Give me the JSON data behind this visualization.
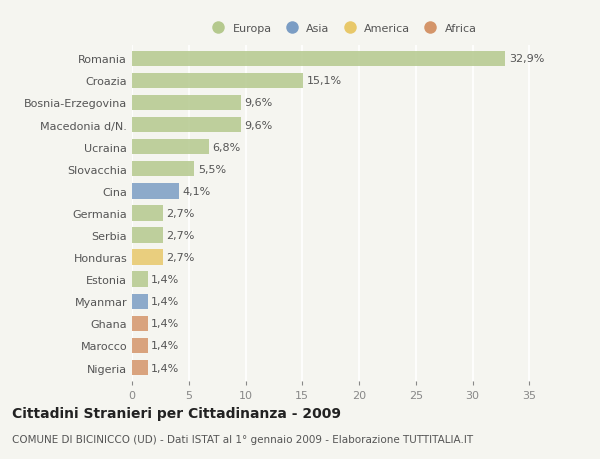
{
  "categories": [
    "Romania",
    "Croazia",
    "Bosnia-Erzegovina",
    "Macedonia d/N.",
    "Ucraina",
    "Slovacchia",
    "Cina",
    "Germania",
    "Serbia",
    "Honduras",
    "Estonia",
    "Myanmar",
    "Ghana",
    "Marocco",
    "Nigeria"
  ],
  "values": [
    32.9,
    15.1,
    9.6,
    9.6,
    6.8,
    5.5,
    4.1,
    2.7,
    2.7,
    2.7,
    1.4,
    1.4,
    1.4,
    1.4,
    1.4
  ],
  "labels": [
    "32,9%",
    "15,1%",
    "9,6%",
    "9,6%",
    "6,8%",
    "5,5%",
    "4,1%",
    "2,7%",
    "2,7%",
    "2,7%",
    "1,4%",
    "1,4%",
    "1,4%",
    "1,4%",
    "1,4%"
  ],
  "colors": [
    "#b5c98e",
    "#b5c98e",
    "#b5c98e",
    "#b5c98e",
    "#b5c98e",
    "#b5c98e",
    "#7b9dc4",
    "#b5c98e",
    "#b5c98e",
    "#e8c86a",
    "#b5c98e",
    "#7b9dc4",
    "#d4956a",
    "#d4956a",
    "#d4956a"
  ],
  "legend_labels": [
    "Europa",
    "Asia",
    "America",
    "Africa"
  ],
  "legend_colors": [
    "#b5c98e",
    "#7b9dc4",
    "#e8c86a",
    "#d4956a"
  ],
  "xlim": [
    0,
    37
  ],
  "xticks": [
    0,
    5,
    10,
    15,
    20,
    25,
    30,
    35
  ],
  "title": "Cittadini Stranieri per Cittadinanza - 2009",
  "subtitle": "COMUNE DI BICINICCO (UD) - Dati ISTAT al 1° gennaio 2009 - Elaborazione TUTTITALIA.IT",
  "bg_color": "#f5f5f0",
  "bar_height": 0.7,
  "label_fontsize": 8,
  "tick_fontsize": 8,
  "title_fontsize": 10,
  "subtitle_fontsize": 7.5
}
